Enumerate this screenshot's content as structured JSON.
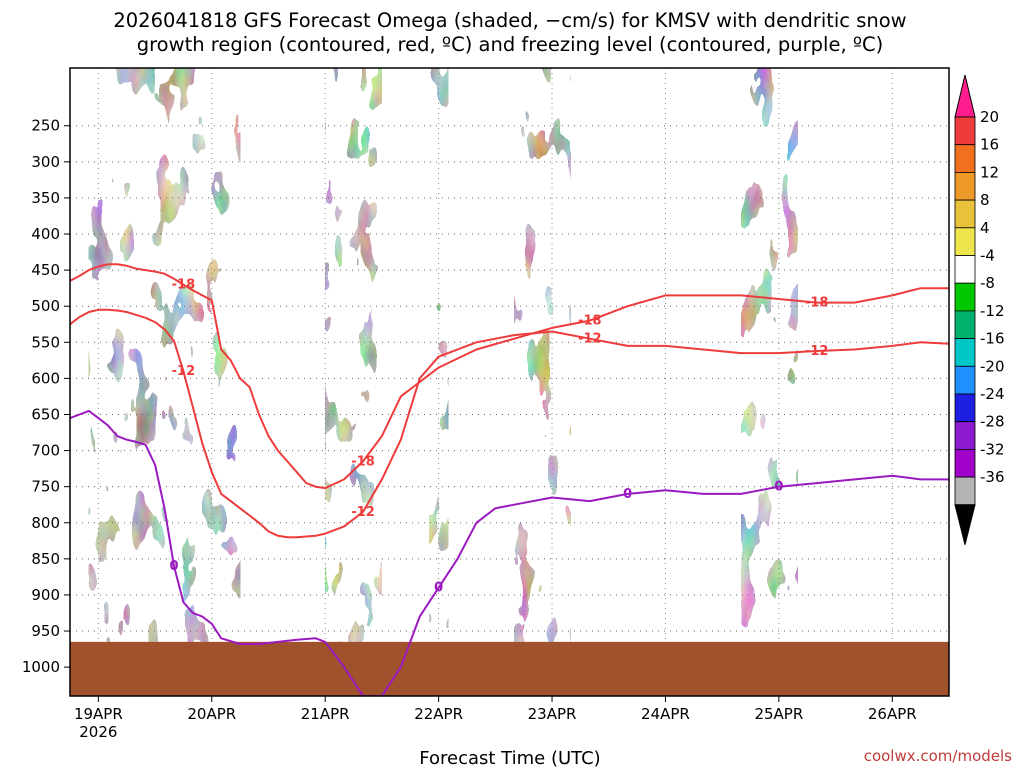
{
  "chart_data": {
    "type": "heatmap",
    "title_lines": [
      "2026041818 GFS Forecast Omega (shaded, −cm/s) for KMSV with dendritic snow",
      "growth region (contoured, red, ºC) and freezing level (contoured, purple, ºC)"
    ],
    "xlabel": "Forecast Time (UTC)",
    "credit": "coolwx.com/models",
    "x_unit": "hours since 2026-04-18 18Z",
    "xlim": [
      18,
      204
    ],
    "x_ticks": [
      {
        "label": "19APR",
        "sub": "2026",
        "hour": 24
      },
      {
        "label": "20APR",
        "sub": "",
        "hour": 48
      },
      {
        "label": "21APR",
        "sub": "",
        "hour": 72
      },
      {
        "label": "22APR",
        "sub": "",
        "hour": 96
      },
      {
        "label": "23APR",
        "sub": "",
        "hour": 120
      },
      {
        "label": "24APR",
        "sub": "",
        "hour": 144
      },
      {
        "label": "25APR",
        "sub": "",
        "hour": 168
      },
      {
        "label": "26APR",
        "sub": "",
        "hour": 192
      }
    ],
    "y_unit": "hPa",
    "ylim": [
      1040,
      170
    ],
    "y_ticks": [
      250,
      300,
      350,
      400,
      450,
      500,
      550,
      600,
      650,
      700,
      750,
      800,
      850,
      900,
      950,
      1000
    ],
    "ground_level_hpa": 965,
    "colorbar": {
      "ticks": [
        "20",
        "16",
        "12",
        "8",
        "4",
        "-4",
        "-8",
        "-12",
        "-16",
        "-20",
        "-24",
        "-28",
        "-32",
        "-36"
      ],
      "colors": [
        "#ff1d8e",
        "#ee3b3b",
        "#f07020",
        "#ee9a28",
        "#e8c23a",
        "#eee44c",
        "#ffffff",
        "#00c800",
        "#00b26e",
        "#00c8c8",
        "#1e90ff",
        "#1e1ee0",
        "#8b1ad0",
        "#a000c8",
        "#b4b4b4",
        "#000000"
      ]
    },
    "series": [
      {
        "name": "-18",
        "color": "#ee3b3b",
        "label_value": "-18",
        "x": [
          18,
          20,
          22,
          24,
          26,
          28,
          30,
          32,
          34,
          36,
          38,
          40,
          42,
          44,
          46,
          48,
          50,
          52,
          54,
          56,
          58,
          60,
          62,
          64,
          66,
          68,
          70,
          72,
          76,
          80,
          84,
          88,
          92,
          96,
          104,
          112,
          120,
          128,
          136,
          144,
          152,
          160,
          168,
          176,
          184,
          192,
          198,
          204
        ],
        "y": [
          465,
          458,
          450,
          445,
          442,
          442,
          444,
          448,
          450,
          452,
          455,
          462,
          470,
          478,
          485,
          492,
          560,
          575,
          600,
          612,
          650,
          680,
          700,
          715,
          730,
          745,
          750,
          752,
          740,
          715,
          680,
          625,
          605,
          585,
          560,
          545,
          530,
          520,
          500,
          485,
          485,
          485,
          490,
          495,
          495,
          485,
          475,
          475
        ]
      },
      {
        "name": "-12",
        "color": "#ee3b3b",
        "label_value": "-12",
        "x": [
          18,
          20,
          22,
          24,
          26,
          28,
          30,
          32,
          34,
          36,
          38,
          40,
          42,
          44,
          46,
          48,
          50,
          52,
          54,
          56,
          58,
          60,
          62,
          64,
          66,
          68,
          70,
          72,
          76,
          80,
          84,
          88,
          92,
          96,
          104,
          112,
          120,
          128,
          136,
          144,
          152,
          160,
          168,
          176,
          184,
          192,
          198,
          204
        ],
        "y": [
          525,
          515,
          508,
          505,
          505,
          506,
          508,
          512,
          516,
          522,
          532,
          548,
          590,
          640,
          690,
          730,
          760,
          770,
          780,
          790,
          800,
          812,
          818,
          820,
          820,
          819,
          818,
          815,
          805,
          785,
          740,
          685,
          600,
          570,
          550,
          540,
          535,
          545,
          555,
          555,
          560,
          565,
          565,
          562,
          560,
          555,
          550,
          552
        ]
      },
      {
        "name": "0",
        "color": "#9a1ac0",
        "label_value": "0",
        "x": [
          18,
          20,
          22,
          24,
          26,
          28,
          30,
          32,
          34,
          36,
          38,
          40,
          42,
          44,
          46,
          48,
          50,
          54,
          58,
          62,
          66,
          70,
          72,
          76,
          80,
          84,
          88,
          92,
          96,
          100,
          104,
          108,
          112,
          120,
          128,
          136,
          144,
          152,
          160,
          168,
          176,
          184,
          192,
          198,
          204
        ],
        "y": [
          655,
          650,
          645,
          655,
          665,
          680,
          685,
          688,
          692,
          720,
          780,
          860,
          910,
          925,
          930,
          940,
          960,
          968,
          968,
          965,
          962,
          960,
          965,
          1000,
          1040,
          1040,
          1000,
          930,
          890,
          850,
          800,
          780,
          775,
          765,
          770,
          760,
          755,
          760,
          760,
          750,
          745,
          740,
          735,
          740,
          740
        ]
      }
    ]
  }
}
